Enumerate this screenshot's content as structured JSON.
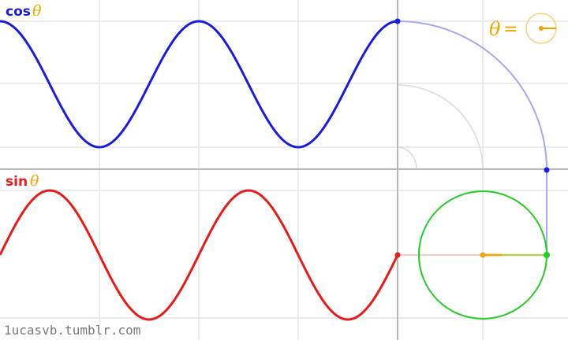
{
  "cos_label": {
    "func": "cos",
    "var": "θ"
  },
  "sin_label": {
    "func": "sin",
    "var": "θ"
  },
  "theta_indicator": {
    "var": "θ",
    "eq": "="
  },
  "credit": "1ucasvb.tumblr.com",
  "colors": {
    "cos": "#1a1ae0",
    "sin": "#e81a1a",
    "theta": "#f0a500",
    "circle": "#22cc22",
    "grid": "#e6e6e6",
    "axis": "#b8b8b8",
    "guide": "#a8a8ee",
    "arc": "#dadada",
    "credit": "#7a7a7a"
  },
  "current_theta": "0"
}
